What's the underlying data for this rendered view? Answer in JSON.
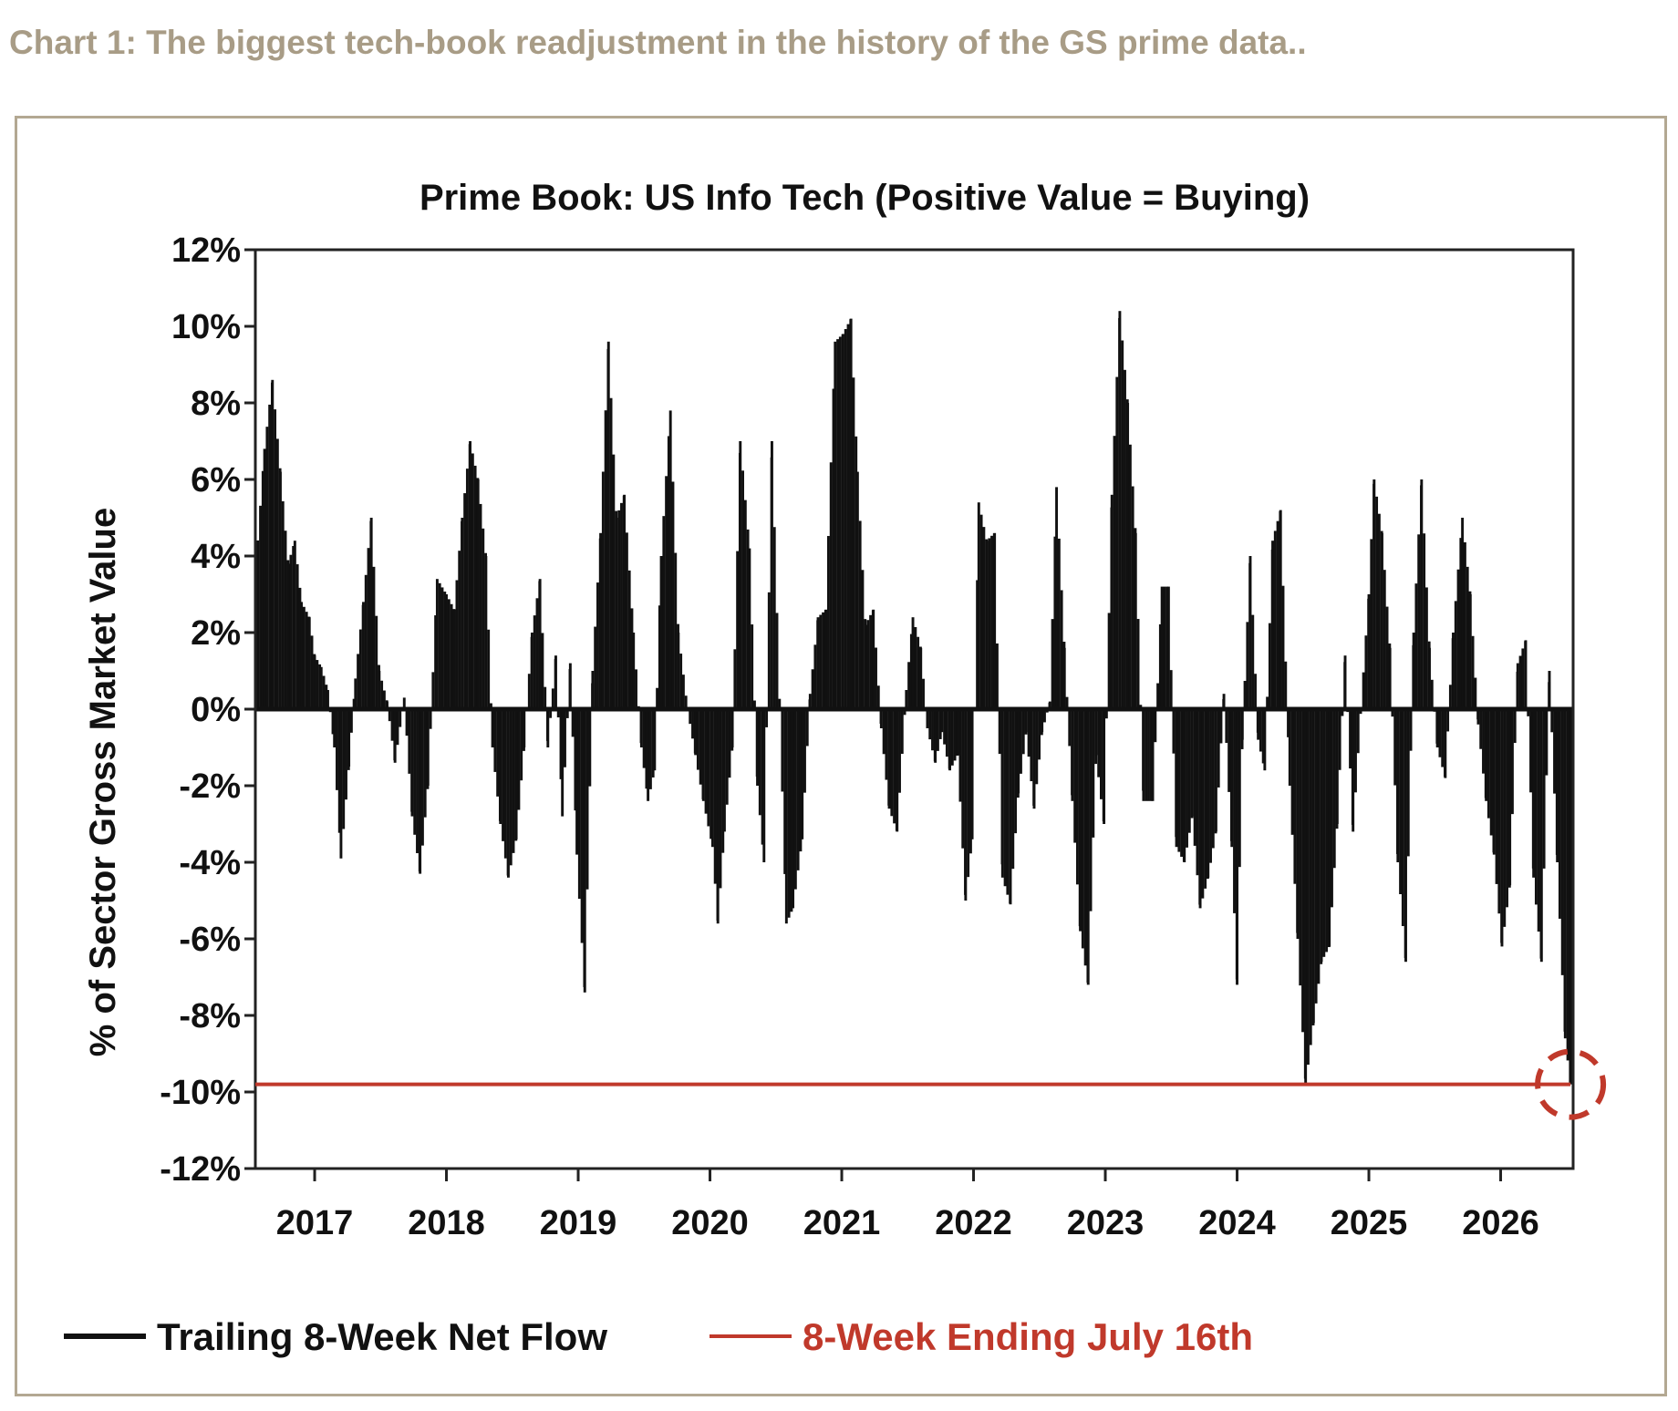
{
  "caption": "Chart 1: The biggest tech-book readjustment in the history of the GS prime data..",
  "chart_data": {
    "type": "bar",
    "title": "Prime Book: US Info Tech (Positive Value = Buying)",
    "xlabel": "",
    "ylabel": "% of Sector Gross Market Value",
    "ylim": [
      -12,
      12
    ],
    "xlim": [
      2016.55,
      2026.55
    ],
    "y_ticks": [
      12,
      10,
      8,
      6,
      4,
      2,
      0,
      -2,
      -4,
      -6,
      -8,
      -10,
      -12
    ],
    "y_tick_labels": [
      "12%",
      "10%",
      "8%",
      "6%",
      "4%",
      "2%",
      "0%",
      "-2%",
      "-4%",
      "-6%",
      "-8%",
      "-10%",
      "-12%"
    ],
    "x_ticks": [
      2017,
      2018,
      2019,
      2020,
      2021,
      2022,
      2023,
      2024,
      2025,
      2026
    ],
    "x_tick_labels": [
      "2017",
      "2018",
      "2019",
      "2020",
      "2021",
      "2022",
      "2023",
      "2024",
      "2025",
      "2026"
    ],
    "grid": false,
    "legend_position": "bottom",
    "series": [
      {
        "name": "Trailing 8-Week Net Flow",
        "color": "#111111",
        "points": [
          [
            2016.55,
            3.5
          ],
          [
            2016.62,
            6.8
          ],
          [
            2016.68,
            8.6
          ],
          [
            2016.74,
            6.2
          ],
          [
            2016.8,
            3.8
          ],
          [
            2016.85,
            4.4
          ],
          [
            2016.9,
            2.8
          ],
          [
            2016.96,
            2.4
          ],
          [
            2017.0,
            1.4
          ],
          [
            2017.05,
            1.1
          ],
          [
            2017.1,
            0.5
          ],
          [
            2017.15,
            -1.0
          ],
          [
            2017.2,
            -3.9
          ],
          [
            2017.26,
            -1.5
          ],
          [
            2017.31,
            0.8
          ],
          [
            2017.37,
            2.8
          ],
          [
            2017.43,
            5.0
          ],
          [
            2017.49,
            1.0
          ],
          [
            2017.55,
            0.2
          ],
          [
            2017.61,
            -1.4
          ],
          [
            2017.68,
            0.3
          ],
          [
            2017.74,
            -2.8
          ],
          [
            2017.8,
            -4.3
          ],
          [
            2017.86,
            -2.0
          ],
          [
            2017.93,
            3.4
          ],
          [
            2018.0,
            3.0
          ],
          [
            2018.06,
            2.6
          ],
          [
            2018.12,
            5.0
          ],
          [
            2018.18,
            7.0
          ],
          [
            2018.24,
            6.0
          ],
          [
            2018.3,
            4.0
          ],
          [
            2018.35,
            -1.0
          ],
          [
            2018.41,
            -3.0
          ],
          [
            2018.47,
            -4.4
          ],
          [
            2018.53,
            -3.4
          ],
          [
            2018.59,
            -1.0
          ],
          [
            2018.65,
            2.0
          ],
          [
            2018.71,
            3.4
          ],
          [
            2018.77,
            -1.0
          ],
          [
            2018.83,
            1.4
          ],
          [
            2018.88,
            -2.8
          ],
          [
            2018.94,
            1.2
          ],
          [
            2018.99,
            -3.8
          ],
          [
            2019.05,
            -7.4
          ],
          [
            2019.11,
            1.0
          ],
          [
            2019.17,
            4.6
          ],
          [
            2019.23,
            9.6
          ],
          [
            2019.29,
            5.0
          ],
          [
            2019.35,
            5.6
          ],
          [
            2019.42,
            2.0
          ],
          [
            2019.48,
            -1.0
          ],
          [
            2019.53,
            -2.4
          ],
          [
            2019.58,
            -1.6
          ],
          [
            2019.63,
            4.0
          ],
          [
            2019.7,
            7.8
          ],
          [
            2019.76,
            2.0
          ],
          [
            2019.83,
            0.0
          ],
          [
            2019.89,
            -1.2
          ],
          [
            2019.95,
            -2.4
          ],
          [
            2020.02,
            -3.6
          ],
          [
            2020.06,
            -5.6
          ],
          [
            2020.11,
            -3.2
          ],
          [
            2020.17,
            -1.0
          ],
          [
            2020.23,
            7.0
          ],
          [
            2020.3,
            4.2
          ],
          [
            2020.36,
            -2.0
          ],
          [
            2020.41,
            -4.0
          ],
          [
            2020.47,
            7.0
          ],
          [
            2020.53,
            0.0
          ],
          [
            2020.58,
            -5.6
          ],
          [
            2020.63,
            -5.2
          ],
          [
            2020.7,
            -3.4
          ],
          [
            2020.76,
            0.4
          ],
          [
            2020.82,
            2.4
          ],
          [
            2020.88,
            2.6
          ],
          [
            2020.95,
            9.6
          ],
          [
            2021.01,
            9.8
          ],
          [
            2021.07,
            10.2
          ],
          [
            2021.12,
            6.2
          ],
          [
            2021.18,
            2.2
          ],
          [
            2021.24,
            2.6
          ],
          [
            2021.3,
            -0.5
          ],
          [
            2021.36,
            -2.6
          ],
          [
            2021.42,
            -3.2
          ],
          [
            2021.49,
            0.5
          ],
          [
            2021.54,
            2.4
          ],
          [
            2021.6,
            1.6
          ],
          [
            2021.65,
            -0.5
          ],
          [
            2021.71,
            -1.4
          ],
          [
            2021.76,
            -0.6
          ],
          [
            2021.82,
            -1.6
          ],
          [
            2021.88,
            -1.2
          ],
          [
            2021.94,
            -5.0
          ],
          [
            2021.99,
            -3.4
          ],
          [
            2022.04,
            5.4
          ],
          [
            2022.1,
            4.4
          ],
          [
            2022.16,
            4.6
          ],
          [
            2022.22,
            -4.4
          ],
          [
            2022.28,
            -5.1
          ],
          [
            2022.34,
            -2.2
          ],
          [
            2022.4,
            -0.6
          ],
          [
            2022.46,
            -2.6
          ],
          [
            2022.52,
            -0.6
          ],
          [
            2022.58,
            0.2
          ],
          [
            2022.63,
            5.8
          ],
          [
            2022.69,
            1.6
          ],
          [
            2022.75,
            -2.4
          ],
          [
            2022.81,
            -5.8
          ],
          [
            2022.87,
            -7.2
          ],
          [
            2022.93,
            -1.2
          ],
          [
            2022.99,
            -3.0
          ],
          [
            2023.05,
            5.6
          ],
          [
            2023.11,
            10.4
          ],
          [
            2023.17,
            8.0
          ],
          [
            2023.23,
            4.6
          ],
          [
            2023.29,
            -2.4
          ],
          [
            2023.36,
            -2.4
          ],
          [
            2023.43,
            3.2
          ],
          [
            2023.48,
            3.2
          ],
          [
            2023.54,
            -3.6
          ],
          [
            2023.6,
            -4.0
          ],
          [
            2023.66,
            -2.8
          ],
          [
            2023.72,
            -5.2
          ],
          [
            2023.78,
            -4.4
          ],
          [
            2023.84,
            -3.2
          ],
          [
            2023.9,
            0.4
          ],
          [
            2023.96,
            -3.6
          ],
          [
            2024.0,
            -7.2
          ],
          [
            2024.04,
            -0.8
          ],
          [
            2024.1,
            4.0
          ],
          [
            2024.16,
            -0.8
          ],
          [
            2024.21,
            -1.6
          ],
          [
            2024.27,
            4.4
          ],
          [
            2024.33,
            5.2
          ],
          [
            2024.4,
            -2.0
          ],
          [
            2024.46,
            -6.0
          ],
          [
            2024.52,
            -9.8
          ],
          [
            2024.58,
            -8.2
          ],
          [
            2024.64,
            -6.6
          ],
          [
            2024.7,
            -6.2
          ],
          [
            2024.76,
            -3.0
          ],
          [
            2024.82,
            1.4
          ],
          [
            2024.88,
            -3.2
          ],
          [
            2024.94,
            0.0
          ],
          [
            2025.0,
            3.0
          ],
          [
            2025.04,
            6.0
          ],
          [
            2025.1,
            4.6
          ],
          [
            2025.16,
            1.6
          ],
          [
            2025.22,
            -4.0
          ],
          [
            2025.28,
            -6.6
          ],
          [
            2025.34,
            2.0
          ],
          [
            2025.4,
            6.0
          ],
          [
            2025.46,
            1.6
          ],
          [
            2025.52,
            -1.0
          ],
          [
            2025.58,
            -1.8
          ],
          [
            2025.64,
            2.0
          ],
          [
            2025.71,
            5.0
          ],
          [
            2025.77,
            3.0
          ],
          [
            2025.83,
            -0.4
          ],
          [
            2025.89,
            -2.4
          ],
          [
            2025.95,
            -3.8
          ],
          [
            2026.01,
            -6.2
          ],
          [
            2026.07,
            -4.6
          ],
          [
            2026.13,
            1.2
          ],
          [
            2026.19,
            1.8
          ],
          [
            2026.25,
            -4.4
          ],
          [
            2026.31,
            -6.6
          ],
          [
            2026.37,
            1.0
          ],
          [
            2026.43,
            -4.0
          ],
          [
            2026.49,
            -8.6
          ],
          [
            2026.53,
            -9.8
          ]
        ]
      },
      {
        "name": "8-Week Ending July 16th",
        "color": "#c0392b",
        "y": -9.8
      }
    ],
    "annotations": [
      {
        "type": "dashed-circle",
        "x": 2026.53,
        "y": -9.8,
        "color": "#c0392b"
      }
    ]
  }
}
